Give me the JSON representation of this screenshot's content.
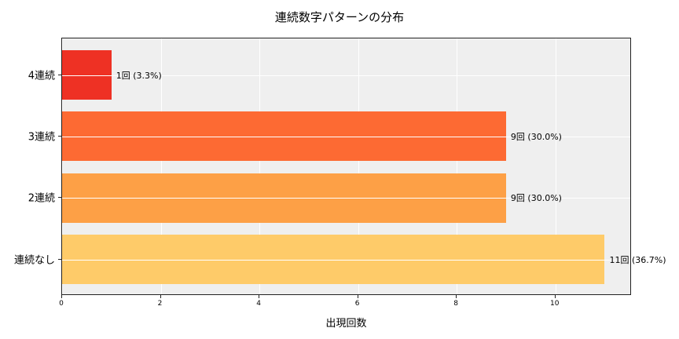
{
  "chart_data": {
    "type": "bar",
    "orientation": "horizontal",
    "title": "連続数字パターンの分布",
    "xlabel": "出現回数",
    "ylabel": "",
    "categories": [
      "4連続",
      "3連続",
      "2連続",
      "連続なし"
    ],
    "values": [
      1,
      9,
      9,
      11
    ],
    "percentages": [
      3.3,
      30.0,
      30.0,
      36.7
    ],
    "data_labels": [
      "1回 (3.3%)",
      "9回 (30.0%)",
      "9回 (30.0%)",
      "11回 (36.7%)"
    ],
    "colors": [
      "#ee3124",
      "#fd6a33",
      "#fda046",
      "#fecb69"
    ],
    "xlim": [
      0,
      11.55
    ],
    "xticks": [
      0,
      2,
      4,
      6,
      8,
      10
    ],
    "grid": true,
    "background": "#efefef"
  },
  "labels": {
    "title": "連続数字パターンの分布",
    "xlabel": "出現回数",
    "xticks": [
      "0",
      "2",
      "4",
      "6",
      "8",
      "10"
    ],
    "bars": [
      {
        "category": "4連続",
        "label": "1回 (3.3%)"
      },
      {
        "category": "3連続",
        "label": "9回 (30.0%)"
      },
      {
        "category": "2連続",
        "label": "9回 (30.0%)"
      },
      {
        "category": "連続なし",
        "label": "11回 (36.7%)"
      }
    ]
  }
}
